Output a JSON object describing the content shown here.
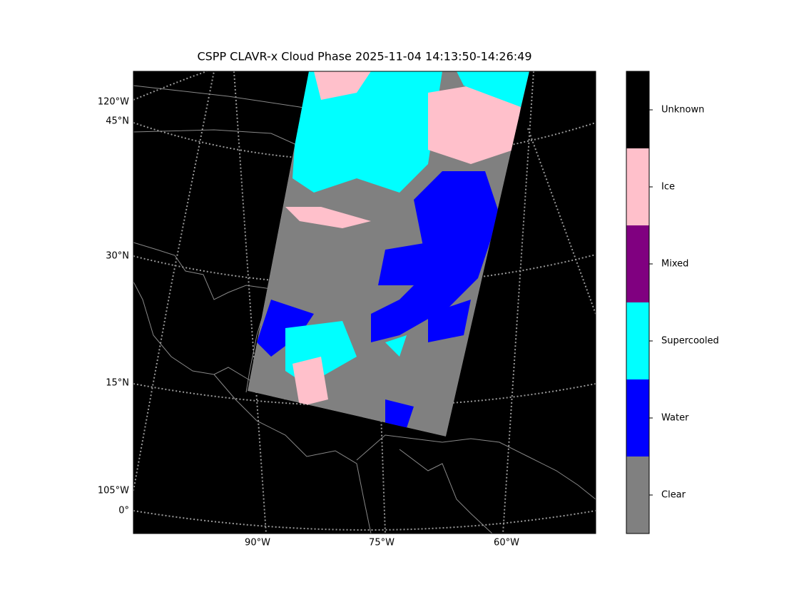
{
  "title": "CSPP CLAVR-x Cloud Phase 2025-11-04 14:13:50-14:26:49",
  "map": {
    "lat_labels": [
      "45°N",
      "30°N",
      "15°N",
      "0°"
    ],
    "lon_labels_left": [
      "120°W",
      "105°W"
    ],
    "lon_labels_bottom": [
      "90°W",
      "75°W",
      "60°W"
    ]
  },
  "colorbar": {
    "classes": [
      {
        "label": "Clear",
        "color": "#808080"
      },
      {
        "label": "Water",
        "color": "#0000ff"
      },
      {
        "label": "Supercooled",
        "color": "#00ffff"
      },
      {
        "label": "Mixed",
        "color": "#800080"
      },
      {
        "label": "Ice",
        "color": "#ffc0cb"
      },
      {
        "label": "Unknown",
        "color": "#000000"
      }
    ]
  }
}
